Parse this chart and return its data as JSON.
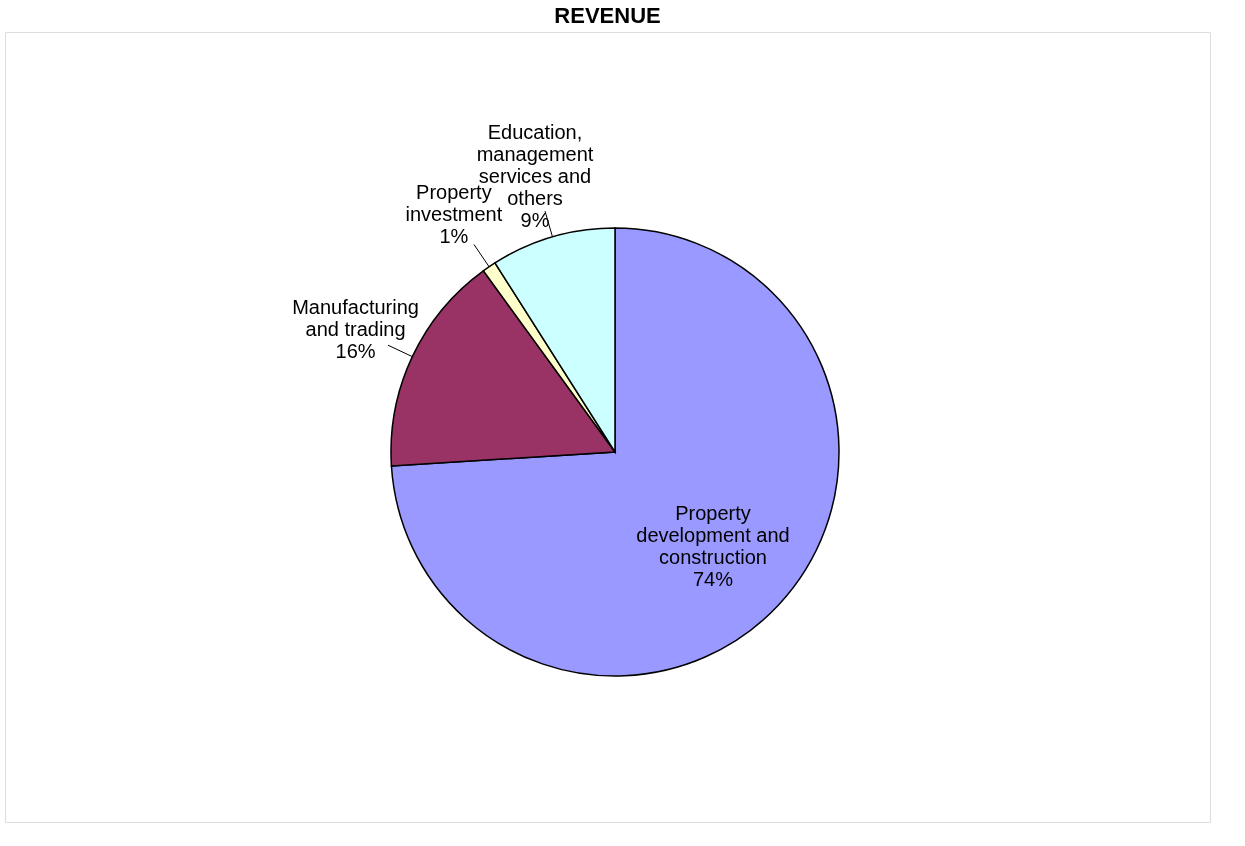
{
  "chart_data": {
    "type": "pie",
    "title": "REVENUE",
    "categories": [
      "Property development and construction",
      "Manufacturing and trading",
      "Property investment",
      "Education, management services and others"
    ],
    "values": [
      74,
      16,
      1,
      9
    ],
    "colors": [
      "#9999ff",
      "#993366",
      "#ffffcc",
      "#ccffff"
    ],
    "value_labels": [
      "74%",
      "16%",
      "1%",
      "9%"
    ],
    "legend": false
  }
}
